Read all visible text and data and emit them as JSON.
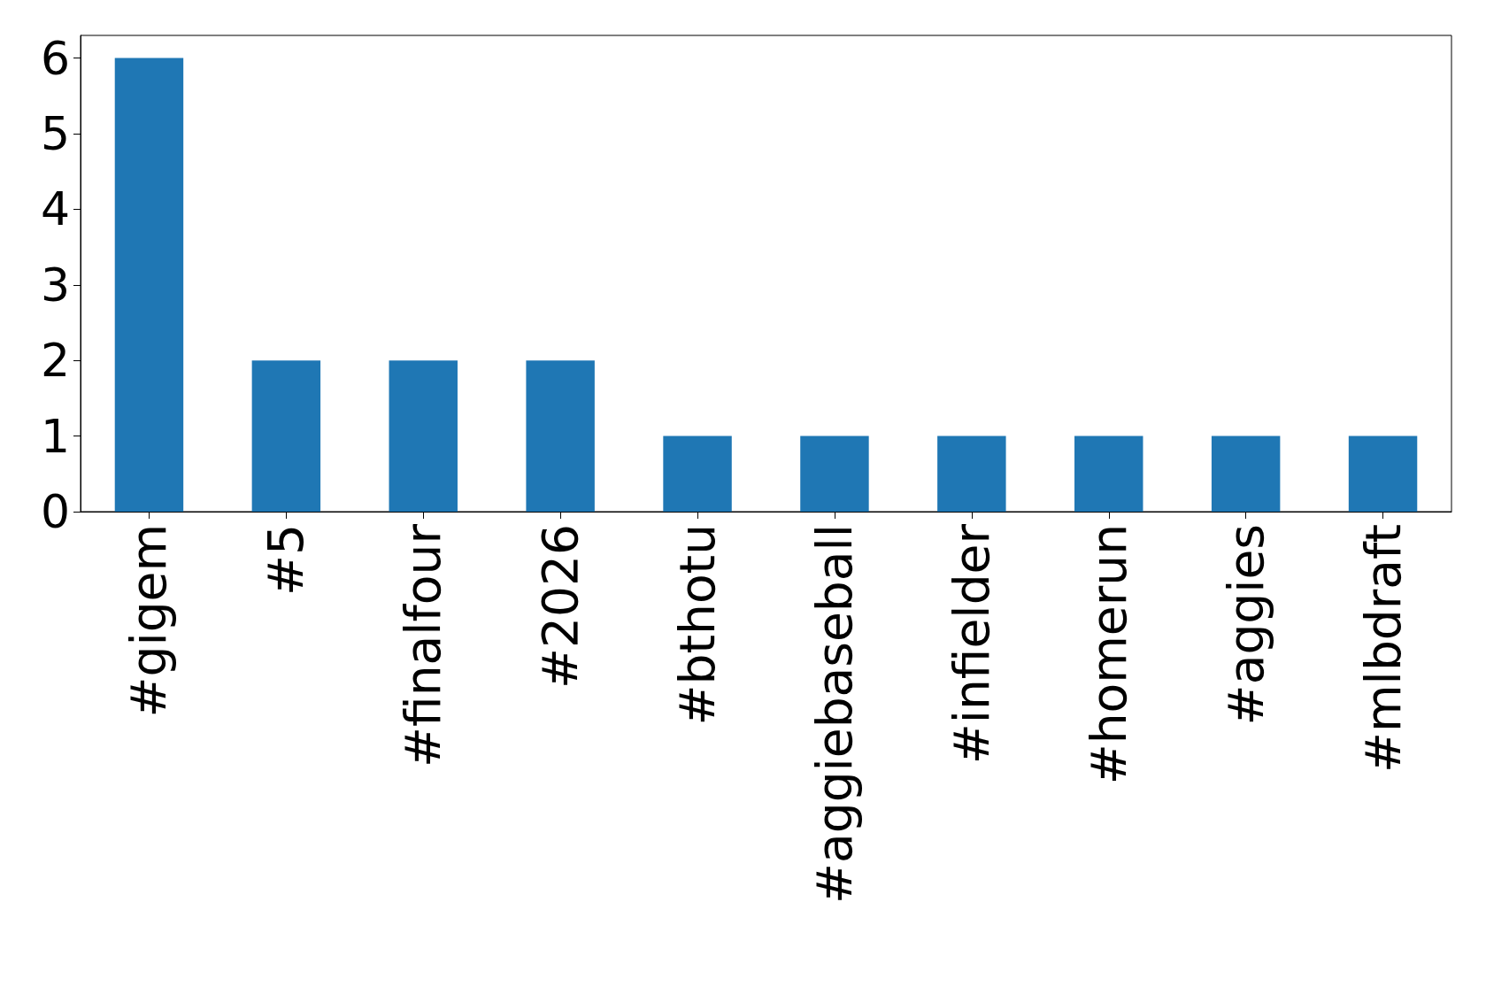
{
  "chart_data": {
    "type": "bar",
    "categories": [
      "#gigem",
      "#5",
      "#finalfour",
      "#2026",
      "#bthotu",
      "#aggiebaseball",
      "#infielder",
      "#homerun",
      "#aggies",
      "#mlbdraft"
    ],
    "values": [
      6,
      2,
      2,
      2,
      1,
      1,
      1,
      1,
      1,
      1
    ],
    "color": "#1f77b4",
    "ylim": [
      0,
      6.3
    ],
    "yticks": [
      0,
      1,
      2,
      3,
      4,
      5,
      6
    ]
  }
}
